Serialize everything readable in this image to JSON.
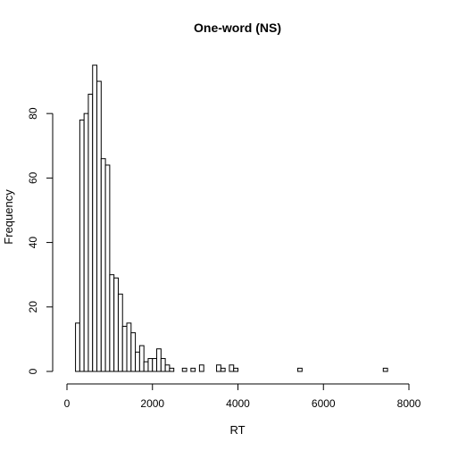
{
  "chart_data": {
    "type": "bar",
    "title": "One-word (NS)",
    "xlabel": "RT",
    "ylabel": "Frequency",
    "bin_width": 100,
    "xlim": [
      0,
      8000
    ],
    "ylim": [
      0,
      95
    ],
    "x_ticks": [
      0,
      2000,
      4000,
      6000,
      8000
    ],
    "y_ticks": [
      0,
      20,
      40,
      60,
      80
    ],
    "grid": false,
    "bins": [
      {
        "x0": 200,
        "x1": 300,
        "count": 15
      },
      {
        "x0": 300,
        "x1": 400,
        "count": 78
      },
      {
        "x0": 400,
        "x1": 500,
        "count": 80
      },
      {
        "x0": 500,
        "x1": 600,
        "count": 86
      },
      {
        "x0": 600,
        "x1": 700,
        "count": 95
      },
      {
        "x0": 700,
        "x1": 800,
        "count": 90
      },
      {
        "x0": 800,
        "x1": 900,
        "count": 66
      },
      {
        "x0": 900,
        "x1": 1000,
        "count": 64
      },
      {
        "x0": 1000,
        "x1": 1100,
        "count": 30
      },
      {
        "x0": 1100,
        "x1": 1200,
        "count": 29
      },
      {
        "x0": 1200,
        "x1": 1300,
        "count": 24
      },
      {
        "x0": 1300,
        "x1": 1400,
        "count": 14
      },
      {
        "x0": 1400,
        "x1": 1500,
        "count": 15
      },
      {
        "x0": 1500,
        "x1": 1600,
        "count": 12
      },
      {
        "x0": 1600,
        "x1": 1700,
        "count": 6
      },
      {
        "x0": 1700,
        "x1": 1800,
        "count": 8
      },
      {
        "x0": 1800,
        "x1": 1900,
        "count": 3
      },
      {
        "x0": 1900,
        "x1": 2000,
        "count": 4
      },
      {
        "x0": 2000,
        "x1": 2100,
        "count": 4
      },
      {
        "x0": 2100,
        "x1": 2200,
        "count": 7
      },
      {
        "x0": 2200,
        "x1": 2300,
        "count": 4
      },
      {
        "x0": 2300,
        "x1": 2400,
        "count": 2
      },
      {
        "x0": 2400,
        "x1": 2500,
        "count": 1
      },
      {
        "x0": 2700,
        "x1": 2800,
        "count": 1
      },
      {
        "x0": 2900,
        "x1": 3000,
        "count": 1
      },
      {
        "x0": 3100,
        "x1": 3200,
        "count": 2
      },
      {
        "x0": 3500,
        "x1": 3600,
        "count": 2
      },
      {
        "x0": 3600,
        "x1": 3700,
        "count": 1
      },
      {
        "x0": 3800,
        "x1": 3900,
        "count": 2
      },
      {
        "x0": 3900,
        "x1": 4000,
        "count": 1
      },
      {
        "x0": 5400,
        "x1": 5500,
        "count": 1
      },
      {
        "x0": 7400,
        "x1": 7500,
        "count": 1
      }
    ]
  }
}
